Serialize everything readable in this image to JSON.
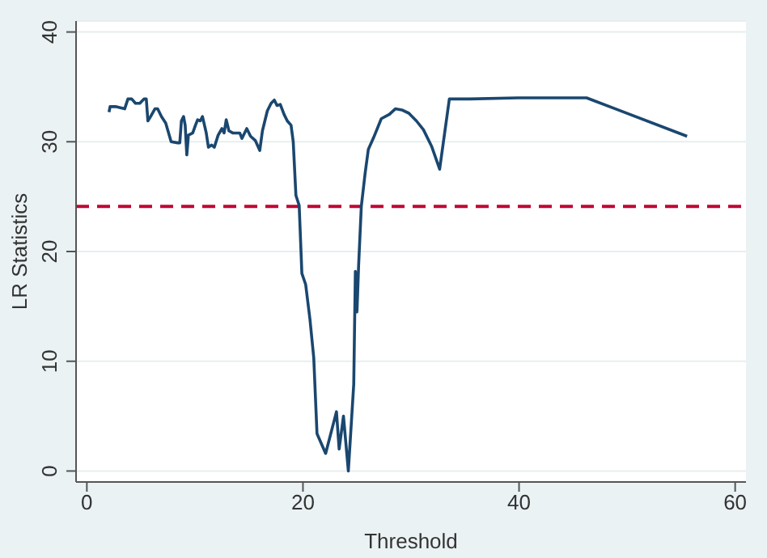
{
  "chart_data": {
    "type": "line",
    "xlabel": "Threshold",
    "ylabel": "LR Statistics",
    "x": [
      2.05,
      2.15,
      2.65,
      3.5,
      3.8,
      4.15,
      4.5,
      4.9,
      5.3,
      5.5,
      5.65,
      5.9,
      6.3,
      6.55,
      6.9,
      7.3,
      7.8,
      8.4,
      8.6,
      8.75,
      8.95,
      9.1,
      9.25,
      9.4,
      9.8,
      10.05,
      10.25,
      10.5,
      10.7,
      11.05,
      11.25,
      11.55,
      11.8,
      12.15,
      12.5,
      12.7,
      12.9,
      13.15,
      13.5,
      14.15,
      14.35,
      14.8,
      15.15,
      15.6,
      16.0,
      16.25,
      16.7,
      17.05,
      17.35,
      17.6,
      17.9,
      18.25,
      18.55,
      18.9,
      19.1,
      19.35,
      19.65,
      19.9,
      20.25,
      20.65,
      21.0,
      21.3,
      22.1,
      23.1,
      23.35,
      23.75,
      24.2,
      24.7,
      24.85,
      25.0,
      25.15,
      25.4,
      25.75,
      26.05,
      26.55,
      27.25,
      28.0,
      28.55,
      29.15,
      29.8,
      30.5,
      31.15,
      31.9,
      32.65,
      33.55,
      35.4,
      39.9,
      46.25,
      55.55
    ],
    "series": [
      {
        "color": "#1a476f",
        "values": [
          32.7,
          33.2,
          33.2,
          33.0,
          33.9,
          33.9,
          33.5,
          33.5,
          33.9,
          33.9,
          31.9,
          32.3,
          33.0,
          33.0,
          32.3,
          31.7,
          30.0,
          29.9,
          29.9,
          31.9,
          32.3,
          31.5,
          28.8,
          30.6,
          30.8,
          31.5,
          32.0,
          31.9,
          32.3,
          30.8,
          29.5,
          29.7,
          29.5,
          30.6,
          31.2,
          30.8,
          32.0,
          31.0,
          30.8,
          30.8,
          30.3,
          31.2,
          30.5,
          30.1,
          29.2,
          31.0,
          32.8,
          33.5,
          33.8,
          33.3,
          33.4,
          32.5,
          31.9,
          31.5,
          30.0,
          25.1,
          24.2,
          18.0,
          17.0,
          13.8,
          10.3,
          3.4,
          1.6,
          5.4,
          2.0,
          5.0,
          0,
          7.9,
          18.2,
          14.5,
          18.7,
          24.1,
          27.1,
          29.3,
          30.4,
          32.1,
          32.5,
          33.0,
          32.9,
          32.6,
          31.9,
          31.1,
          29.6,
          27.5,
          33.9,
          33.9,
          34.0,
          34.0,
          30.5
        ]
      }
    ],
    "xlim": [
      -1,
      61
    ],
    "xticks": [
      0,
      20,
      40,
      60
    ],
    "ylim": [
      -1,
      41
    ],
    "yticks": [
      0,
      10,
      20,
      30,
      40
    ],
    "grid": "y",
    "marker": "none",
    "line_style": "solid",
    "ref_lines": [
      {
        "axis": "y",
        "value": 24.1,
        "color": "#c10534",
        "line_style": "dashed"
      }
    ]
  }
}
